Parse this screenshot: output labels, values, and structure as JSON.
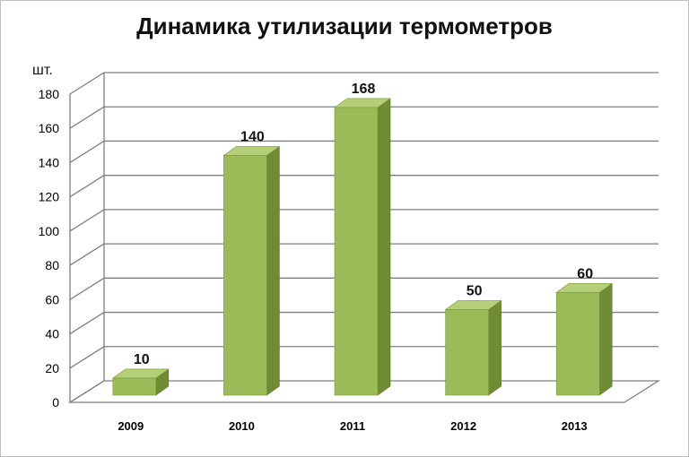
{
  "chart_data": {
    "type": "bar",
    "title": "Динамика утилизации термометров",
    "ylabel": "шт.",
    "xlabel": "",
    "categories": [
      "2009",
      "2010",
      "2011",
      "2012",
      "2013"
    ],
    "values": [
      10,
      140,
      168,
      50,
      60
    ],
    "data_labels": [
      "10",
      "140",
      "168",
      "50",
      "60"
    ],
    "yticks": [
      "0",
      "20",
      "40",
      "60",
      "80",
      "100",
      "120",
      "140",
      "160",
      "180"
    ],
    "ylim": [
      0,
      180
    ],
    "grid": true,
    "legend": "none",
    "style": "3d-column",
    "colors": {
      "bar_front": "#9bbb59",
      "bar_side": "#6f8c35",
      "bar_top": "#b5cf78",
      "grid": "#7f7f7f",
      "axis_text": "#000000"
    }
  }
}
